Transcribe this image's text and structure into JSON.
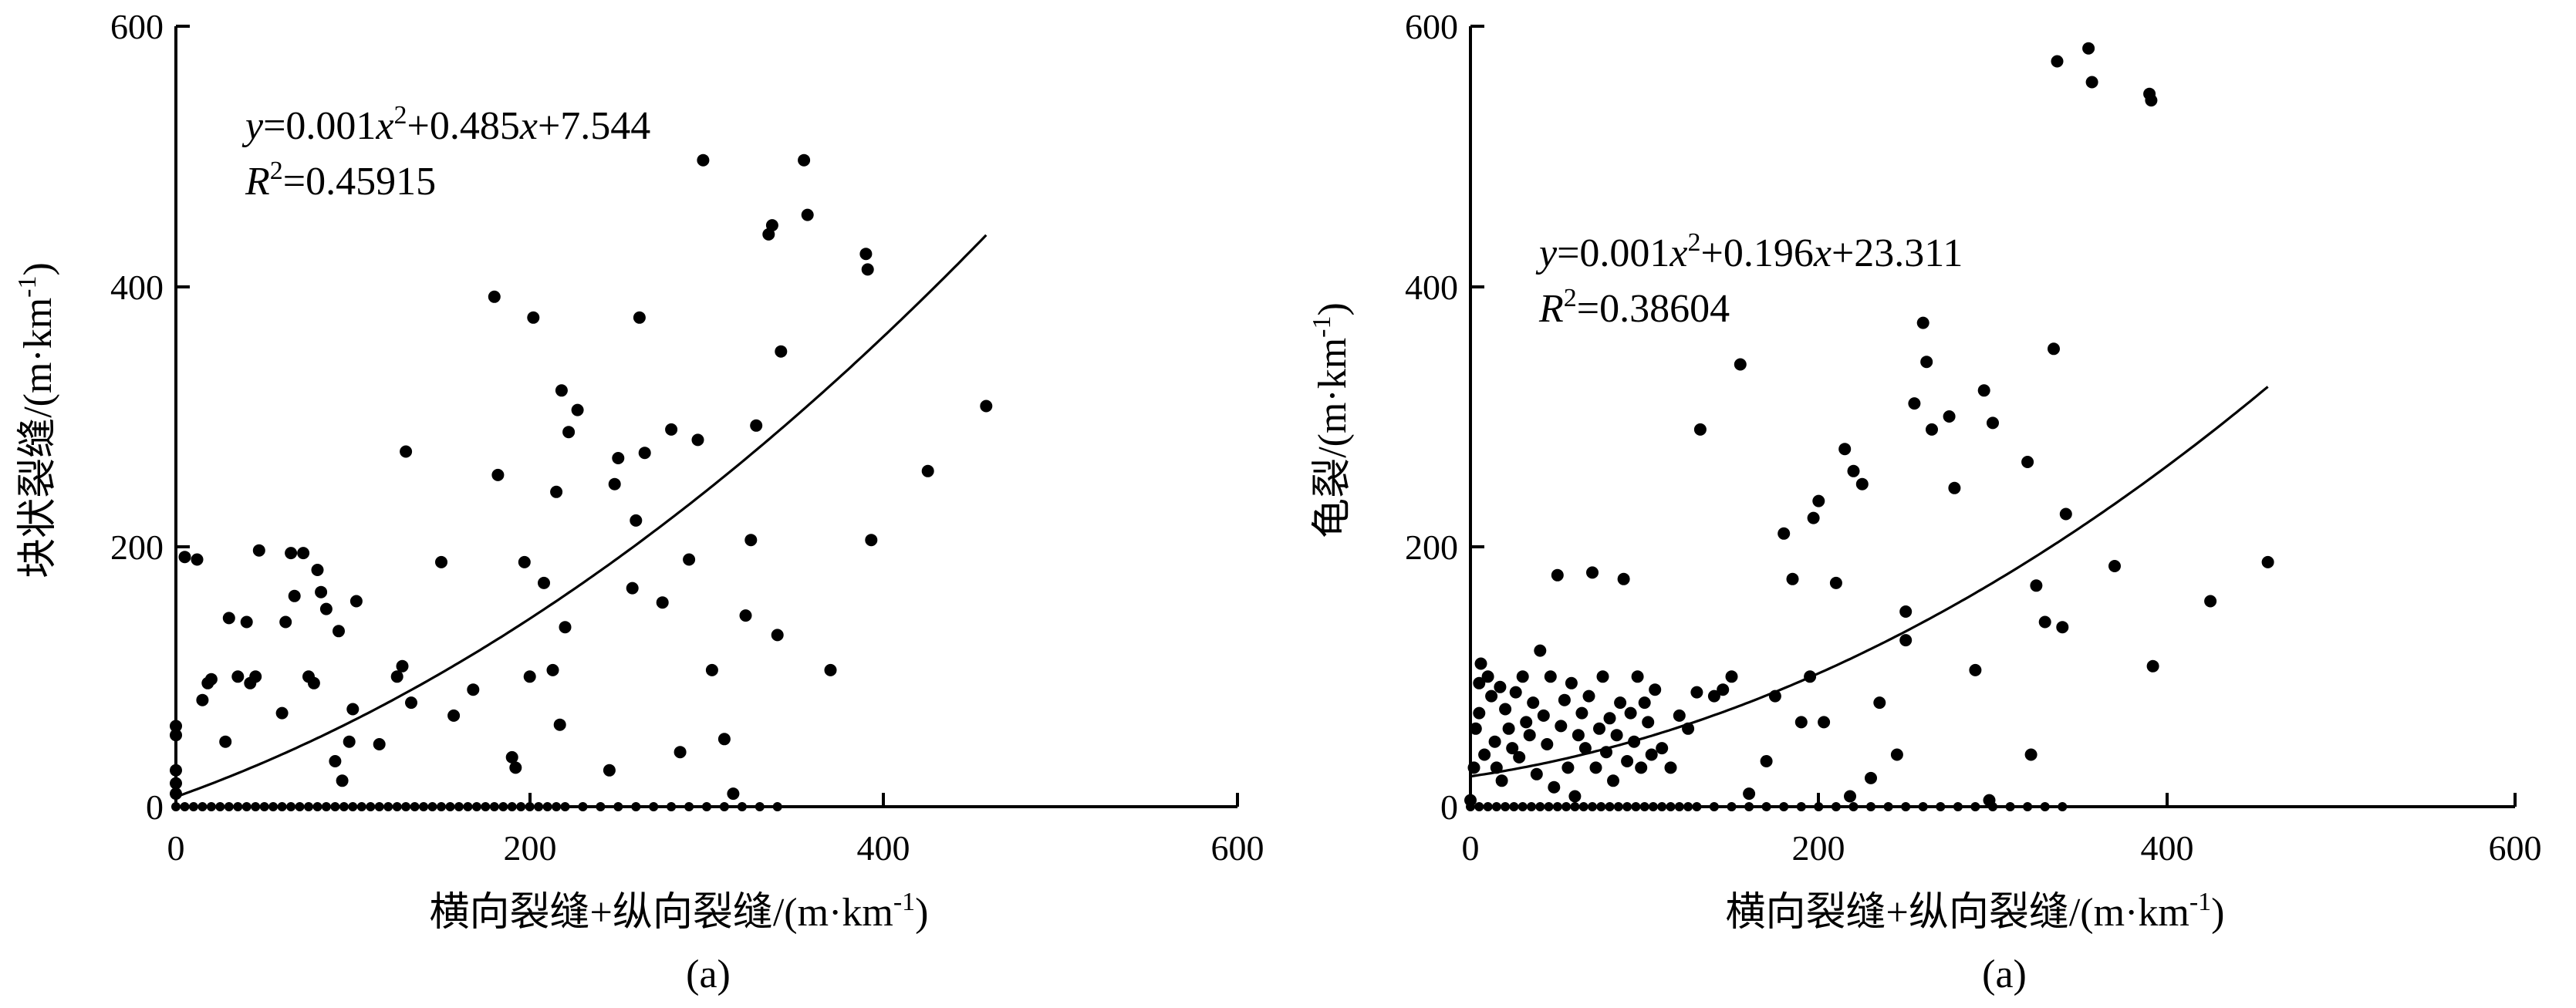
{
  "chart_data": [
    {
      "type": "scatter",
      "subtitle": "(a)",
      "xlabel": "横向裂缝+纵向裂缝/(m·km-1)",
      "xlabel_main": "横向裂缝+纵向裂缝/(m·km",
      "xlabel_sup": "-1",
      "xlabel_close": ")",
      "ylabel": "块状裂缝/(m·km-1)",
      "ylabel_main": "块状裂缝/(m·km",
      "ylabel_sup": "-1",
      "ylabel_close": ")",
      "xlim": [
        0,
        600
      ],
      "ylim": [
        0,
        600
      ],
      "xticks": [
        "0",
        "200",
        "400",
        "600"
      ],
      "yticks": [
        "0",
        "200",
        "400",
        "600"
      ],
      "equation": {
        "text": "y=0.001x²+0.485x+7.544",
        "y": "y",
        "p1": "=0.001",
        "x1": "x",
        "sup": "2",
        "p2": "+0.485",
        "x2": "x",
        "p3": "+7.544"
      },
      "r2": {
        "text": "R²=0.45915",
        "R": "R",
        "sup": "2",
        "val": "=0.45915"
      },
      "fit": {
        "a": 0.001,
        "b": 0.485,
        "c": 7.544,
        "x_max": 458
      },
      "points": [
        [
          0,
          10
        ],
        [
          0,
          18
        ],
        [
          0,
          28
        ],
        [
          0,
          55
        ],
        [
          0,
          62
        ],
        [
          5,
          192
        ],
        [
          12,
          190
        ],
        [
          15,
          82
        ],
        [
          18,
          95
        ],
        [
          20,
          98
        ],
        [
          28,
          50
        ],
        [
          30,
          145
        ],
        [
          35,
          100
        ],
        [
          40,
          142
        ],
        [
          42,
          95
        ],
        [
          45,
          100
        ],
        [
          47,
          197
        ],
        [
          60,
          72
        ],
        [
          62,
          142
        ],
        [
          65,
          195
        ],
        [
          67,
          162
        ],
        [
          72,
          195
        ],
        [
          75,
          100
        ],
        [
          78,
          95
        ],
        [
          80,
          182
        ],
        [
          82,
          165
        ],
        [
          85,
          152
        ],
        [
          90,
          35
        ],
        [
          92,
          135
        ],
        [
          94,
          20
        ],
        [
          98,
          50
        ],
        [
          100,
          75
        ],
        [
          102,
          158
        ],
        [
          115,
          48
        ],
        [
          125,
          100
        ],
        [
          128,
          108
        ],
        [
          130,
          273
        ],
        [
          133,
          80
        ],
        [
          150,
          188
        ],
        [
          157,
          70
        ],
        [
          168,
          90
        ],
        [
          180,
          392
        ],
        [
          182,
          255
        ],
        [
          190,
          38
        ],
        [
          192,
          30
        ],
        [
          197,
          188
        ],
        [
          200,
          100
        ],
        [
          202,
          376
        ],
        [
          208,
          172
        ],
        [
          213,
          105
        ],
        [
          215,
          242
        ],
        [
          217,
          63
        ],
        [
          218,
          320
        ],
        [
          220,
          138
        ],
        [
          222,
          288
        ],
        [
          227,
          305
        ],
        [
          245,
          28
        ],
        [
          248,
          248
        ],
        [
          250,
          268
        ],
        [
          258,
          168
        ],
        [
          260,
          220
        ],
        [
          262,
          376
        ],
        [
          265,
          272
        ],
        [
          275,
          157
        ],
        [
          280,
          290
        ],
        [
          285,
          42
        ],
        [
          290,
          190
        ],
        [
          295,
          282
        ],
        [
          298,
          497
        ],
        [
          303,
          105
        ],
        [
          310,
          52
        ],
        [
          315,
          10
        ],
        [
          322,
          147
        ],
        [
          325,
          205
        ],
        [
          328,
          293
        ],
        [
          335,
          440
        ],
        [
          337,
          447
        ],
        [
          340,
          132
        ],
        [
          342,
          350
        ],
        [
          355,
          497
        ],
        [
          357,
          455
        ],
        [
          370,
          105
        ],
        [
          390,
          425
        ],
        [
          391,
          413
        ],
        [
          393,
          205
        ],
        [
          425,
          258
        ],
        [
          458,
          308
        ]
      ],
      "baseline_x": [
        0,
        5,
        10,
        15,
        20,
        25,
        30,
        35,
        40,
        45,
        50,
        55,
        60,
        65,
        70,
        75,
        80,
        85,
        90,
        95,
        100,
        105,
        110,
        115,
        120,
        125,
        130,
        135,
        140,
        145,
        150,
        155,
        160,
        165,
        170,
        175,
        180,
        185,
        190,
        195,
        200,
        205,
        210,
        215,
        220,
        230,
        240,
        250,
        260,
        270,
        280,
        290,
        300,
        310,
        320,
        330,
        340
      ]
    },
    {
      "type": "scatter",
      "subtitle": "(a)",
      "xlabel": "横向裂缝+纵向裂缝/(m·km-1)",
      "xlabel_main": "横向裂缝+纵向裂缝/(m·km",
      "xlabel_sup": "-1",
      "xlabel_close": ")",
      "ylabel": "龟裂/(m·km-1)",
      "ylabel_main": "龟裂/(m·km",
      "ylabel_sup": "-1",
      "ylabel_close": ")",
      "xlim": [
        0,
        600
      ],
      "ylim": [
        0,
        600
      ],
      "xticks": [
        "0",
        "200",
        "400",
        "600"
      ],
      "yticks": [
        "0",
        "200",
        "400",
        "600"
      ],
      "equation": {
        "text": "y=0.001x²+0.196x+23.311",
        "y": "y",
        "p1": "=0.001",
        "x1": "x",
        "sup": "2",
        "p2": "+0.196",
        "x2": "x",
        "p3": "+23.311"
      },
      "r2": {
        "text": "R²=0.38604",
        "R": "R",
        "sup": "2",
        "val": "=0.38604"
      },
      "fit": {
        "a": 0.001,
        "b": 0.196,
        "c": 23.311,
        "x_max": 458
      },
      "points": [
        [
          0,
          5
        ],
        [
          2,
          30
        ],
        [
          3,
          60
        ],
        [
          5,
          72
        ],
        [
          5,
          95
        ],
        [
          6,
          110
        ],
        [
          8,
          40
        ],
        [
          10,
          100
        ],
        [
          12,
          85
        ],
        [
          14,
          50
        ],
        [
          15,
          30
        ],
        [
          17,
          92
        ],
        [
          18,
          20
        ],
        [
          20,
          75
        ],
        [
          22,
          60
        ],
        [
          24,
          45
        ],
        [
          26,
          88
        ],
        [
          28,
          38
        ],
        [
          30,
          100
        ],
        [
          32,
          65
        ],
        [
          34,
          55
        ],
        [
          36,
          80
        ],
        [
          38,
          25
        ],
        [
          40,
          120
        ],
        [
          42,
          70
        ],
        [
          44,
          48
        ],
        [
          46,
          100
        ],
        [
          48,
          15
        ],
        [
          50,
          178
        ],
        [
          52,
          62
        ],
        [
          54,
          82
        ],
        [
          56,
          30
        ],
        [
          58,
          95
        ],
        [
          60,
          8
        ],
        [
          62,
          55
        ],
        [
          64,
          72
        ],
        [
          66,
          45
        ],
        [
          68,
          85
        ],
        [
          70,
          180
        ],
        [
          72,
          30
        ],
        [
          74,
          60
        ],
        [
          76,
          100
        ],
        [
          78,
          42
        ],
        [
          80,
          68
        ],
        [
          82,
          20
        ],
        [
          84,
          55
        ],
        [
          86,
          80
        ],
        [
          88,
          175
        ],
        [
          90,
          35
        ],
        [
          92,
          72
        ],
        [
          94,
          50
        ],
        [
          96,
          100
        ],
        [
          98,
          30
        ],
        [
          100,
          80
        ],
        [
          102,
          65
        ],
        [
          104,
          40
        ],
        [
          106,
          90
        ],
        [
          110,
          45
        ],
        [
          115,
          30
        ],
        [
          120,
          70
        ],
        [
          125,
          60
        ],
        [
          130,
          88
        ],
        [
          132,
          290
        ],
        [
          140,
          85
        ],
        [
          145,
          90
        ],
        [
          150,
          100
        ],
        [
          155,
          340
        ],
        [
          160,
          10
        ],
        [
          170,
          35
        ],
        [
          175,
          85
        ],
        [
          180,
          210
        ],
        [
          185,
          175
        ],
        [
          190,
          65
        ],
        [
          195,
          100
        ],
        [
          197,
          222
        ],
        [
          200,
          235
        ],
        [
          203,
          65
        ],
        [
          210,
          172
        ],
        [
          215,
          275
        ],
        [
          218,
          8
        ],
        [
          220,
          258
        ],
        [
          225,
          248
        ],
        [
          230,
          22
        ],
        [
          235,
          80
        ],
        [
          245,
          40
        ],
        [
          250,
          150
        ],
        [
          250,
          128
        ],
        [
          255,
          310
        ],
        [
          260,
          372
        ],
        [
          262,
          342
        ],
        [
          265,
          290
        ],
        [
          275,
          300
        ],
        [
          278,
          245
        ],
        [
          290,
          105
        ],
        [
          295,
          320
        ],
        [
          298,
          5
        ],
        [
          300,
          295
        ],
        [
          320,
          265
        ],
        [
          322,
          40
        ],
        [
          325,
          170
        ],
        [
          330,
          142
        ],
        [
          335,
          352
        ],
        [
          337,
          573
        ],
        [
          340,
          138
        ],
        [
          342,
          225
        ],
        [
          355,
          583
        ],
        [
          357,
          557
        ],
        [
          370,
          185
        ],
        [
          390,
          548
        ],
        [
          391,
          543
        ],
        [
          392,
          108
        ],
        [
          425,
          158
        ],
        [
          458,
          188
        ]
      ],
      "baseline_x": [
        0,
        5,
        10,
        15,
        20,
        25,
        30,
        35,
        40,
        45,
        50,
        55,
        60,
        65,
        70,
        75,
        80,
        85,
        90,
        95,
        100,
        105,
        110,
        115,
        120,
        125,
        130,
        140,
        150,
        160,
        170,
        180,
        190,
        200,
        210,
        220,
        230,
        240,
        250,
        260,
        270,
        280,
        290,
        300,
        310,
        320,
        330,
        340
      ]
    }
  ]
}
